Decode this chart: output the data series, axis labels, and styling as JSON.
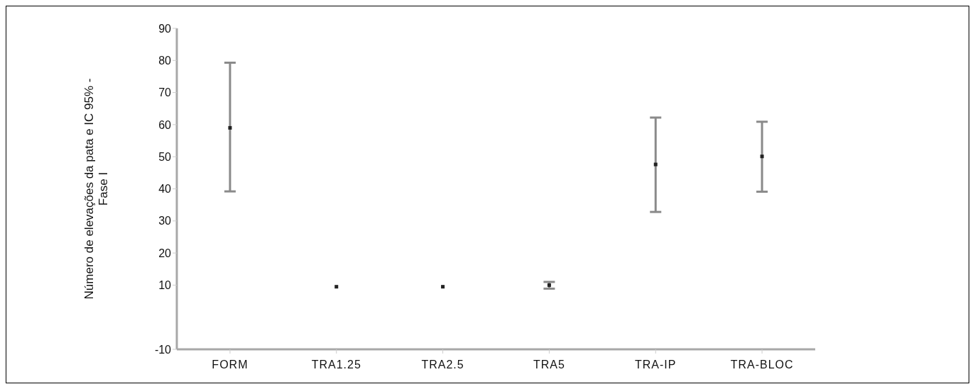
{
  "chart_data": {
    "type": "scatter",
    "ylabel": "Número de elevações da pata e IC 95% - Fase I",
    "categories": [
      "FORM",
      "TRA1.25",
      "TRA2.5",
      "TRA5",
      "TRA-IP",
      "TRA-BLOC"
    ],
    "values": [
      59,
      9.5,
      9.5,
      10,
      47.6,
      50.1
    ],
    "errors": [
      [
        39.2,
        79.3
      ],
      null,
      null,
      [
        8.9,
        11
      ],
      [
        32.8,
        62.2
      ],
      [
        39.1,
        60.9
      ]
    ],
    "color": "#222222",
    "marker": "square",
    "ylim": [
      -10,
      90
    ],
    "yticks": [
      -10,
      10,
      20,
      30,
      40,
      50,
      60,
      70,
      80,
      90
    ],
    "grid": false
  }
}
